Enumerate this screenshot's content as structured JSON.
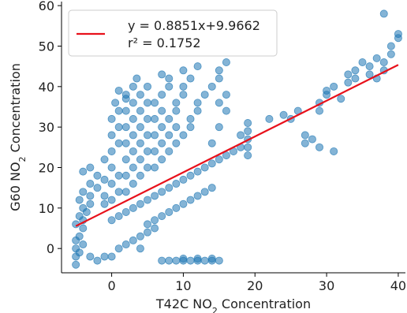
{
  "chart_data": {
    "type": "scatter",
    "xlabel": {
      "main": "T42C NO",
      "sub": "2",
      "tail": " Concentration"
    },
    "ylabel": {
      "main": "G60 NO",
      "sub": "2",
      "tail": " Concentration"
    },
    "xlim": [
      -7,
      41
    ],
    "ylim": [
      -6,
      61
    ],
    "xticks": [
      0,
      10,
      20,
      30,
      40
    ],
    "yticks": [
      0,
      10,
      20,
      30,
      40,
      50,
      60
    ],
    "grid": false,
    "legend_position": "top-left",
    "series": [
      {
        "kind": "scatter",
        "color": "#1f77b4",
        "points": [
          [
            -5,
            -4
          ],
          [
            -5,
            -2
          ],
          [
            -4.5,
            -1
          ],
          [
            -5,
            0
          ],
          [
            -4,
            1
          ],
          [
            -5,
            2
          ],
          [
            -4.5,
            3
          ],
          [
            -4,
            5
          ],
          [
            -5,
            6
          ],
          [
            -4,
            7
          ],
          [
            -4.5,
            8
          ],
          [
            -3.5,
            9
          ],
          [
            -4,
            10
          ],
          [
            -3,
            11
          ],
          [
            -4.5,
            12
          ],
          [
            -3,
            13
          ],
          [
            -4,
            14
          ],
          [
            -2,
            15
          ],
          [
            -3,
            16
          ],
          [
            -1,
            17
          ],
          [
            -2,
            18
          ],
          [
            -4,
            19
          ],
          [
            -3,
            20
          ],
          [
            -1,
            11
          ],
          [
            -1,
            13
          ],
          [
            0,
            12
          ],
          [
            1,
            14
          ],
          [
            0,
            16
          ],
          [
            1,
            18
          ],
          [
            0,
            20
          ],
          [
            -1,
            22
          ],
          [
            0,
            24
          ],
          [
            1,
            26
          ],
          [
            0,
            28
          ],
          [
            1,
            30
          ],
          [
            0,
            32
          ],
          [
            1,
            34
          ],
          [
            0.5,
            36
          ],
          [
            2,
            37
          ],
          [
            1,
            39
          ],
          [
            2,
            14
          ],
          [
            3,
            16
          ],
          [
            2,
            18
          ],
          [
            3,
            20
          ],
          [
            2,
            22
          ],
          [
            3,
            24
          ],
          [
            2,
            26
          ],
          [
            3,
            28
          ],
          [
            2,
            30
          ],
          [
            3,
            32
          ],
          [
            2,
            34
          ],
          [
            3,
            36
          ],
          [
            2,
            38
          ],
          [
            3,
            40
          ],
          [
            3.5,
            42
          ],
          [
            4,
            18
          ],
          [
            5,
            20
          ],
          [
            4,
            22
          ],
          [
            5,
            24
          ],
          [
            4,
            26
          ],
          [
            5,
            28
          ],
          [
            4,
            30
          ],
          [
            5,
            32
          ],
          [
            4,
            34
          ],
          [
            5,
            36
          ],
          [
            4,
            38
          ],
          [
            5,
            40
          ],
          [
            6,
            20
          ],
          [
            7,
            22
          ],
          [
            6,
            24
          ],
          [
            7,
            26
          ],
          [
            6,
            28
          ],
          [
            7,
            30
          ],
          [
            6,
            32
          ],
          [
            7,
            34
          ],
          [
            6,
            36
          ],
          [
            7,
            38
          ],
          [
            8,
            40
          ],
          [
            8,
            42
          ],
          [
            7,
            43
          ],
          [
            8,
            24
          ],
          [
            9,
            26
          ],
          [
            8,
            28
          ],
          [
            9,
            30
          ],
          [
            8,
            32
          ],
          [
            9,
            34
          ],
          [
            9,
            36
          ],
          [
            10,
            38
          ],
          [
            10,
            40
          ],
          [
            11,
            42
          ],
          [
            10,
            44
          ],
          [
            12,
            45
          ],
          [
            10,
            28
          ],
          [
            11,
            30
          ],
          [
            11,
            32
          ],
          [
            12,
            34
          ],
          [
            12,
            36
          ],
          [
            13,
            38
          ],
          [
            14,
            40
          ],
          [
            15,
            42
          ],
          [
            15,
            44
          ],
          [
            16,
            46
          ],
          [
            0,
            7
          ],
          [
            1,
            8
          ],
          [
            2,
            9
          ],
          [
            3,
            10
          ],
          [
            4,
            11
          ],
          [
            5,
            12
          ],
          [
            6,
            13
          ],
          [
            7,
            14
          ],
          [
            8,
            15
          ],
          [
            9,
            16
          ],
          [
            10,
            17
          ],
          [
            11,
            18
          ],
          [
            12,
            19
          ],
          [
            13,
            20
          ],
          [
            14,
            21
          ],
          [
            15,
            22
          ],
          [
            16,
            23
          ],
          [
            17,
            24
          ],
          [
            18,
            25
          ],
          [
            5,
            6
          ],
          [
            6,
            7
          ],
          [
            7,
            8
          ],
          [
            8,
            9
          ],
          [
            9,
            10
          ],
          [
            10,
            11
          ],
          [
            11,
            12
          ],
          [
            12,
            13
          ],
          [
            13,
            14
          ],
          [
            14,
            15
          ],
          [
            14,
            26
          ],
          [
            15,
            30
          ],
          [
            16,
            34
          ],
          [
            16,
            38
          ],
          [
            15,
            36
          ],
          [
            3,
            2
          ],
          [
            4,
            3
          ],
          [
            5,
            4
          ],
          [
            6,
            5
          ],
          [
            2,
            1
          ],
          [
            1,
            0
          ],
          [
            4,
            0
          ],
          [
            -1,
            -2
          ],
          [
            0,
            -2
          ],
          [
            -2,
            -3
          ],
          [
            -3,
            -2
          ],
          [
            7,
            -3
          ],
          [
            8,
            -3
          ],
          [
            9,
            -3
          ],
          [
            10,
            -3
          ],
          [
            11,
            -3
          ],
          [
            12,
            -3
          ],
          [
            13,
            -3
          ],
          [
            14,
            -3
          ],
          [
            15,
            -3
          ],
          [
            10,
            -2.5
          ],
          [
            12,
            -2.5
          ],
          [
            14,
            -2.5
          ],
          [
            19,
            23
          ],
          [
            19,
            25
          ],
          [
            19,
            27
          ],
          [
            19,
            29
          ],
          [
            19,
            31
          ],
          [
            18,
            28
          ],
          [
            22,
            32
          ],
          [
            24,
            33
          ],
          [
            25,
            32
          ],
          [
            26,
            34
          ],
          [
            27,
            26
          ],
          [
            27,
            28
          ],
          [
            28,
            27
          ],
          [
            29,
            34
          ],
          [
            29,
            36
          ],
          [
            29,
            25
          ],
          [
            30,
            39
          ],
          [
            31,
            24
          ],
          [
            32,
            37
          ],
          [
            33,
            43
          ],
          [
            34,
            42
          ],
          [
            34,
            44
          ],
          [
            35,
            46
          ],
          [
            36,
            45
          ],
          [
            36,
            43
          ],
          [
            37,
            42
          ],
          [
            37,
            47
          ],
          [
            38,
            44
          ],
          [
            38,
            46
          ],
          [
            38,
            58
          ],
          [
            39,
            48
          ],
          [
            39,
            50
          ],
          [
            40,
            53
          ],
          [
            40,
            52
          ],
          [
            33,
            41
          ],
          [
            31,
            40
          ],
          [
            30,
            38
          ]
        ]
      },
      {
        "kind": "line",
        "name": "y = 0.8851x+9.9662",
        "color": "#e8111b",
        "slope": 0.8851,
        "intercept": 9.9662,
        "x_range": [
          -5,
          40
        ]
      }
    ],
    "legend": {
      "line1": "y = 0.8851x+9.9662",
      "line2": "r² = 0.1752"
    }
  }
}
